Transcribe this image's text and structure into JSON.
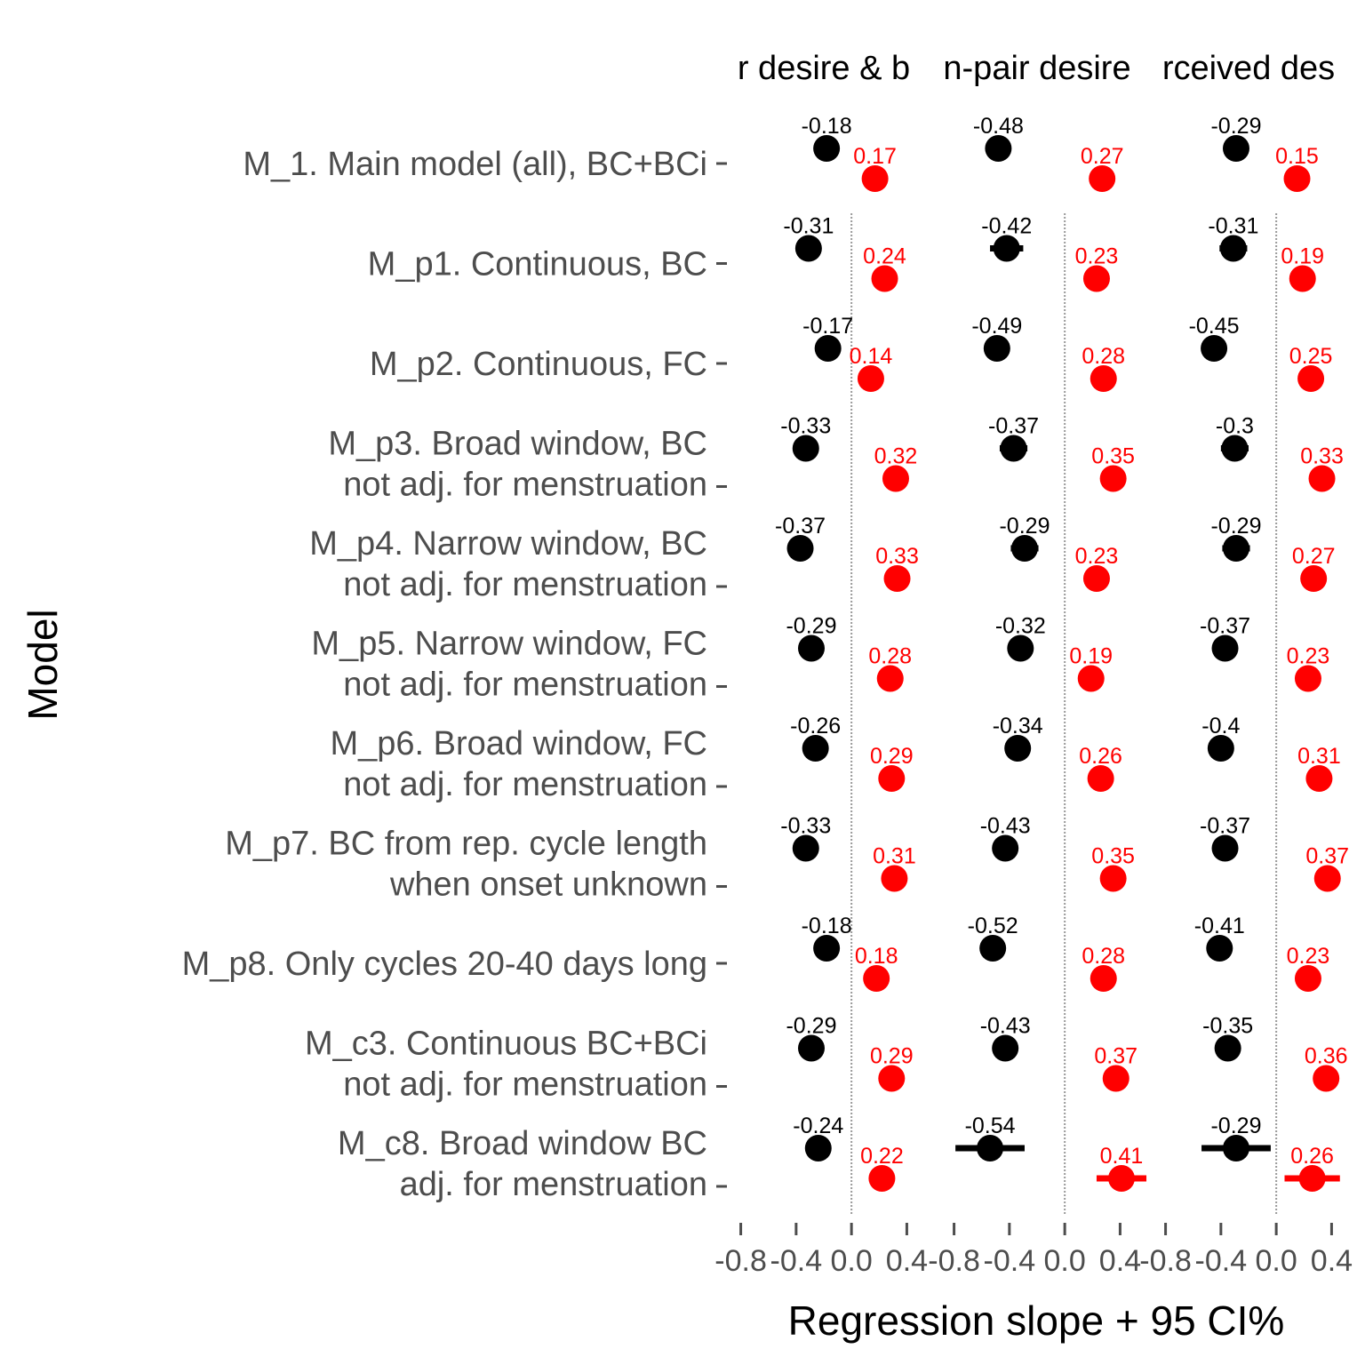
{
  "chart_data": {
    "type": "scatter",
    "xlabel": "Regression slope + 95 CI%",
    "ylabel": "Model",
    "xlim": [
      -0.9,
      0.5
    ],
    "xticks": [
      "-0.8",
      "-0.4",
      "0.0",
      "0.4"
    ],
    "grid": "dotted vertical line at x = 0",
    "panels": [
      "r desire & b",
      "n-pair desire",
      "rceived des"
    ],
    "models": [
      [
        "M_1. Main model (all), BC+BCi"
      ],
      [
        "M_p1. Continuous, BC"
      ],
      [
        "M_p2. Continuous, FC"
      ],
      [
        "M_p3. Broad window, BC",
        "not adj. for menstruation"
      ],
      [
        "M_p4. Narrow window, BC",
        "not adj. for menstruation"
      ],
      [
        "M_p5. Narrow window, FC",
        "not adj. for menstruation"
      ],
      [
        "M_p6. Broad window, FC",
        "not adj. for menstruation"
      ],
      [
        "M_p7. BC from rep. cycle length",
        "when onset unknown"
      ],
      [
        "M_p8. Only cycles 20-40 days long"
      ],
      [
        "M_c3. Continuous BC+BCi",
        "not adj. for menstruation"
      ],
      [
        "M_c8. Broad window BC",
        "adj. for menstruation"
      ]
    ],
    "series": [
      {
        "color": "#000000",
        "values": [
          [
            -0.18,
            -0.31,
            -0.17,
            -0.33,
            -0.37,
            -0.29,
            -0.26,
            -0.33,
            -0.18,
            -0.29,
            -0.24
          ],
          [
            -0.48,
            -0.42,
            -0.49,
            -0.37,
            -0.29,
            -0.32,
            -0.34,
            -0.43,
            -0.52,
            -0.43,
            -0.54
          ],
          [
            -0.29,
            -0.31,
            -0.45,
            -0.3,
            -0.29,
            -0.37,
            -0.4,
            -0.37,
            -0.41,
            -0.35,
            -0.29
          ]
        ],
        "labels": [
          [
            "-0.18",
            "-0.31",
            "-0.17",
            "-0.33",
            "-0.37",
            "-0.29",
            "-0.26",
            "-0.33",
            "-0.18",
            "-0.29",
            "-0.24"
          ],
          [
            "-0.48",
            "-0.42",
            "-0.49",
            "-0.37",
            "-0.29",
            "-0.32",
            "-0.34",
            "-0.43",
            "-0.52",
            "-0.43",
            "-0.54"
          ],
          [
            "-0.29",
            "-0.31",
            "-0.45",
            "-0.3",
            "-0.29",
            "-0.37",
            "-0.4",
            "-0.37",
            "-0.41",
            "-0.35",
            "-0.29"
          ]
        ],
        "ci_halfwidth": [
          [
            0.0,
            0.0,
            0.0,
            0.0,
            0.0,
            0.0,
            0.0,
            0.0,
            0.0,
            0.0,
            0.06
          ],
          [
            0.08,
            0.12,
            0.08,
            0.1,
            0.1,
            0.08,
            0.08,
            0.06,
            0.08,
            0.05,
            0.25
          ],
          [
            0.08,
            0.1,
            0.09,
            0.1,
            0.1,
            0.09,
            0.09,
            0.05,
            0.09,
            0.05,
            0.25
          ]
        ]
      },
      {
        "color": "#ff0000",
        "values": [
          [
            0.17,
            0.24,
            0.14,
            0.32,
            0.33,
            0.28,
            0.29,
            0.31,
            0.18,
            0.29,
            0.22
          ],
          [
            0.27,
            0.23,
            0.28,
            0.35,
            0.23,
            0.19,
            0.26,
            0.35,
            0.28,
            0.37,
            0.41
          ],
          [
            0.15,
            0.19,
            0.25,
            0.33,
            0.27,
            0.23,
            0.31,
            0.37,
            0.23,
            0.36,
            0.26
          ]
        ],
        "labels": [
          [
            "0.17",
            "0.24",
            "0.14",
            "0.32",
            "0.33",
            "0.28",
            "0.29",
            "0.31",
            "0.18",
            "0.29",
            "0.22"
          ],
          [
            "0.27",
            "0.23",
            "0.28",
            "0.35",
            "0.23",
            "0.19",
            "0.26",
            "0.35",
            "0.28",
            "0.37",
            "0.41"
          ],
          [
            "0.15",
            "0.19",
            "0.25",
            "0.33",
            "0.27",
            "0.23",
            "0.31",
            "0.37",
            "0.23",
            "0.36",
            "0.26"
          ]
        ],
        "ci_halfwidth": [
          [
            0.0,
            0.0,
            0.0,
            0.0,
            0.0,
            0.0,
            0.0,
            0.0,
            0.0,
            0.0,
            0.0
          ],
          [
            0.07,
            0.08,
            0.07,
            0.09,
            0.09,
            0.07,
            0.07,
            0.04,
            0.07,
            0.05,
            0.18
          ],
          [
            0.07,
            0.08,
            0.08,
            0.09,
            0.09,
            0.09,
            0.09,
            0.04,
            0.08,
            0.04,
            0.2
          ]
        ]
      }
    ]
  }
}
